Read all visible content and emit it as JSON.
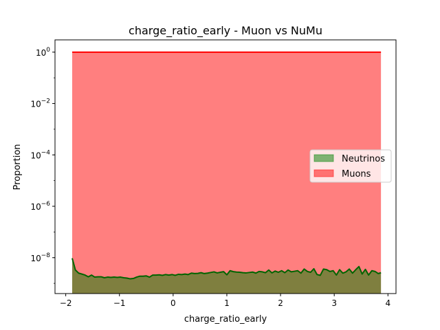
{
  "chart_data": {
    "type": "area",
    "title": "charge_ratio_early - Muon vs NuMu",
    "xlabel": "charge_ratio_early",
    "ylabel": "Proportion",
    "xlim": [
      -2.2,
      4.15
    ],
    "ylim": [
      4e-10,
      3
    ],
    "yscale": "log",
    "grid": false,
    "legend_position": "center-right",
    "x_ticks": [
      {
        "value": -2,
        "label": "−2"
      },
      {
        "value": -1,
        "label": "−1"
      },
      {
        "value": 0,
        "label": "0"
      },
      {
        "value": 1,
        "label": "1"
      },
      {
        "value": 2,
        "label": "2"
      },
      {
        "value": 3,
        "label": "3"
      },
      {
        "value": 4,
        "label": "4"
      }
    ],
    "y_ticks": [
      {
        "value": 1e-08,
        "base": "10",
        "exp": "−8"
      },
      {
        "value": 1e-06,
        "base": "10",
        "exp": "−6"
      },
      {
        "value": 0.0001,
        "base": "10",
        "exp": "−4"
      },
      {
        "value": 0.01,
        "base": "10",
        "exp": "−2"
      },
      {
        "value": 1,
        "base": "10",
        "exp": "0"
      }
    ],
    "series": [
      {
        "name": "Muons",
        "color": "#ff0000",
        "fill_color": "#ff0000",
        "fill_opacity": 0.5,
        "x": [
          -1.88,
          3.87
        ],
        "y": [
          1.0,
          1.0
        ]
      },
      {
        "name": "Neutrinos",
        "color": "#006400",
        "fill_color": "#008000",
        "fill_opacity": 0.5,
        "x": [
          -1.88,
          -1.82,
          -1.76,
          -1.7,
          -1.64,
          -1.58,
          -1.52,
          -1.46,
          -1.4,
          -1.34,
          -1.28,
          -1.22,
          -1.16,
          -1.1,
          -1.04,
          -0.98,
          -0.92,
          -0.86,
          -0.8,
          -0.74,
          -0.68,
          -0.62,
          -0.56,
          -0.5,
          -0.44,
          -0.38,
          -0.32,
          -0.26,
          -0.2,
          -0.14,
          -0.08,
          -0.02,
          0.04,
          0.1,
          0.16,
          0.22,
          0.28,
          0.34,
          0.4,
          0.46,
          0.52,
          0.58,
          0.64,
          0.7,
          0.76,
          0.82,
          0.88,
          0.94,
          1.0,
          1.06,
          1.12,
          1.18,
          1.24,
          1.3,
          1.36,
          1.42,
          1.48,
          1.54,
          1.6,
          1.66,
          1.72,
          1.78,
          1.84,
          1.9,
          1.96,
          2.02,
          2.08,
          2.14,
          2.2,
          2.26,
          2.32,
          2.38,
          2.44,
          2.5,
          2.56,
          2.62,
          2.68,
          2.74,
          2.8,
          2.86,
          2.92,
          2.98,
          3.04,
          3.1,
          3.16,
          3.22,
          3.28,
          3.34,
          3.4,
          3.46,
          3.52,
          3.58,
          3.64,
          3.7,
          3.76,
          3.82,
          3.87
        ],
        "y": [
          9.5e-09,
          3.3e-09,
          2.5e-09,
          2.3e-09,
          2.1e-09,
          1.8e-09,
          2.1e-09,
          1.75e-09,
          1.8e-09,
          1.8e-09,
          1.65e-09,
          1.75e-09,
          1.7e-09,
          1.75e-09,
          1.7e-09,
          1.75e-09,
          1.65e-09,
          1.6e-09,
          1.5e-09,
          1.55e-09,
          1.75e-09,
          1.9e-09,
          1.9e-09,
          1.95e-09,
          1.75e-09,
          2.1e-09,
          2.1e-09,
          2.15e-09,
          2.05e-09,
          2.2e-09,
          2.1e-09,
          2.2e-09,
          2.05e-09,
          2.25e-09,
          2.2e-09,
          2.3e-09,
          2.2e-09,
          2.5e-09,
          2.4e-09,
          2.45e-09,
          2.6e-09,
          2.4e-09,
          2.5e-09,
          2.65e-09,
          2.8e-09,
          2.55e-09,
          2.7e-09,
          2.85e-09,
          2.15e-09,
          3.1e-09,
          2.85e-09,
          2.75e-09,
          2.7e-09,
          2.6e-09,
          2.55e-09,
          2.65e-09,
          2.75e-09,
          2.5e-09,
          2.9e-09,
          2.8e-09,
          2.6e-09,
          3.3e-09,
          2.55e-09,
          3e-09,
          2.7e-09,
          3.1e-09,
          2.6e-09,
          3.3e-09,
          2.8e-09,
          2.95e-09,
          3.1e-09,
          2.5e-09,
          3.6e-09,
          2.9e-09,
          2.7e-09,
          3.7e-09,
          2.2e-09,
          2.05e-09,
          3.6e-09,
          3.4e-09,
          2.9e-09,
          3.1e-09,
          2.1e-09,
          3.4e-09,
          2.5e-09,
          2.8e-09,
          3.6e-09,
          2.5e-09,
          3.4e-09,
          4.5e-09,
          2.3e-09,
          3.5e-09,
          2.1e-09,
          3.1e-09,
          2.9e-09,
          2.4e-09,
          2.6e-09
        ]
      }
    ],
    "legend": [
      {
        "label": "Neutrinos",
        "series": "Neutrinos"
      },
      {
        "label": "Muons",
        "series": "Muons"
      }
    ]
  }
}
